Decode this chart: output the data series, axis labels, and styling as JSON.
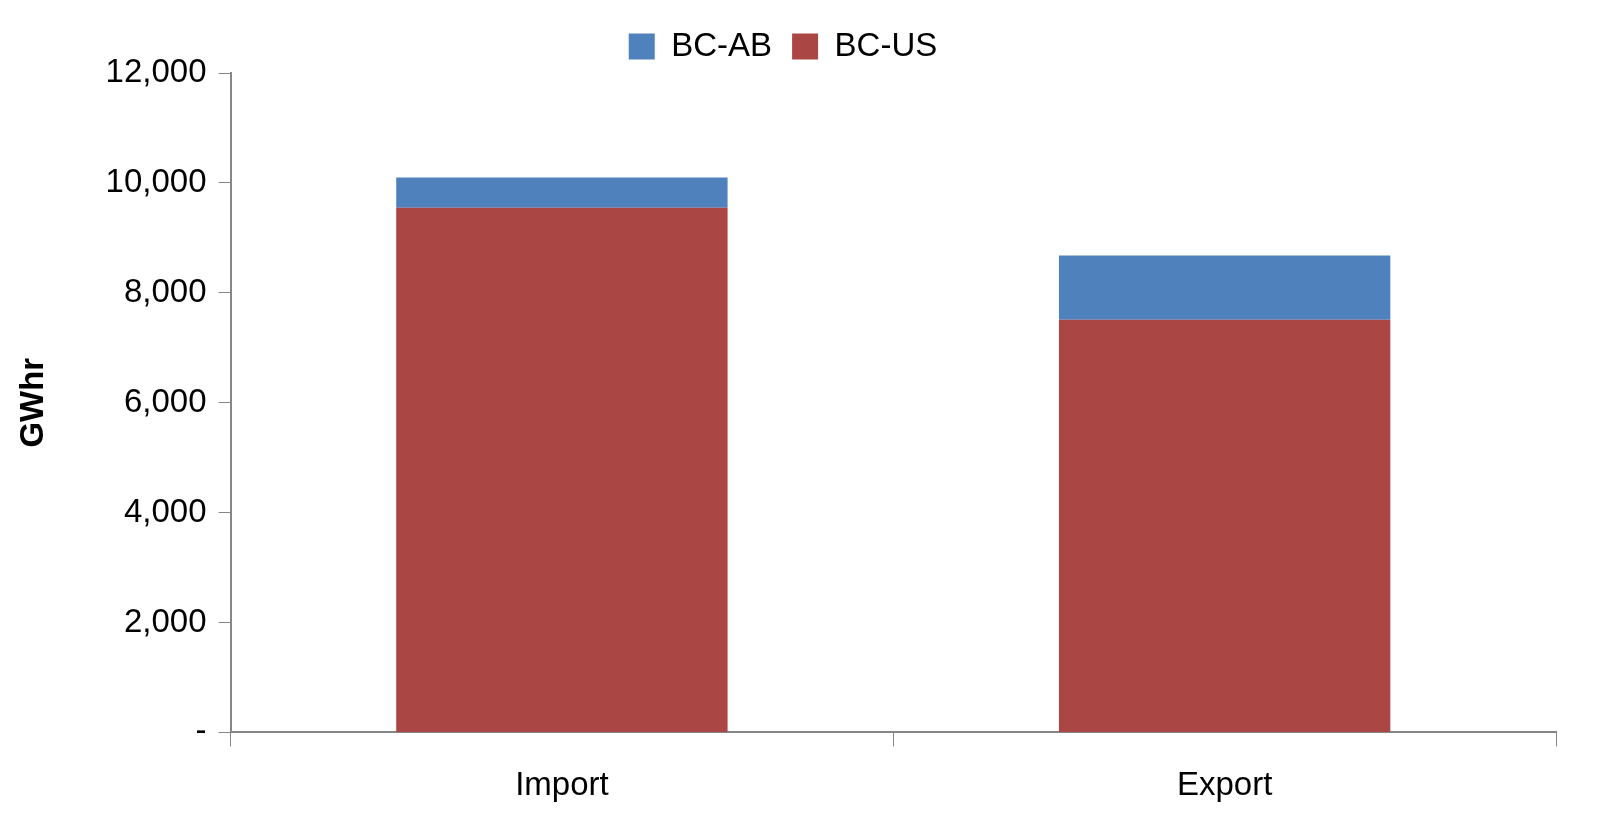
{
  "chart_data": {
    "type": "bar",
    "ylabel": "GWhr",
    "categories": [
      "Import",
      "Export"
    ],
    "stacked": true,
    "series": [
      {
        "name": "BC-US",
        "color": "#aa4744",
        "values": [
          9550,
          7510
        ]
      },
      {
        "name": "BC-AB",
        "color": "#4f81bd",
        "values": [
          550,
          1170
        ]
      }
    ],
    "ylim": [
      0,
      12000
    ],
    "yticks": [
      {
        "value": 0,
        "label": "-"
      },
      {
        "value": 2000,
        "label": "2,000"
      },
      {
        "value": 4000,
        "label": "4,000"
      },
      {
        "value": 6000,
        "label": "6,000"
      },
      {
        "value": 8000,
        "label": "8,000"
      },
      {
        "value": 10000,
        "label": "10,000"
      },
      {
        "value": 12000,
        "label": "12,000"
      }
    ],
    "grid": false,
    "legend": "top"
  }
}
